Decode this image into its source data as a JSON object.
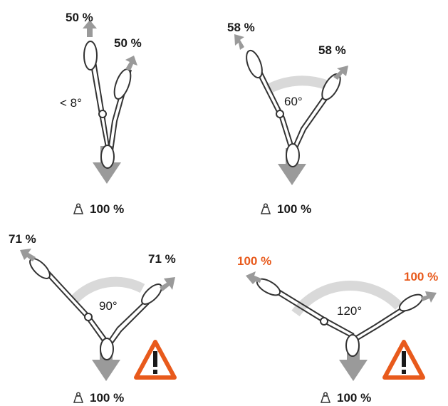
{
  "panels": [
    {
      "left_load": "50 %",
      "right_load": "50 %",
      "angle": "< 8°",
      "total": "100 %",
      "warning": false
    },
    {
      "left_load": "58 %",
      "right_load": "58 %",
      "angle": "60°",
      "total": "100 %",
      "warning": false
    },
    {
      "left_load": "71 %",
      "right_load": "71 %",
      "angle": "90°",
      "total": "100 %",
      "warning": true
    },
    {
      "left_load": "100 %",
      "right_load": "100 %",
      "angle": "120°",
      "total": "100 %",
      "warning": true
    }
  ],
  "colors": {
    "warning": "#e85a1c",
    "arrow": "#9a9a9a",
    "arc": "#d9d9d9",
    "text": "#1a1a1a"
  },
  "icons": {
    "total_load": "weight-icon",
    "warning": "warning-triangle-icon"
  }
}
